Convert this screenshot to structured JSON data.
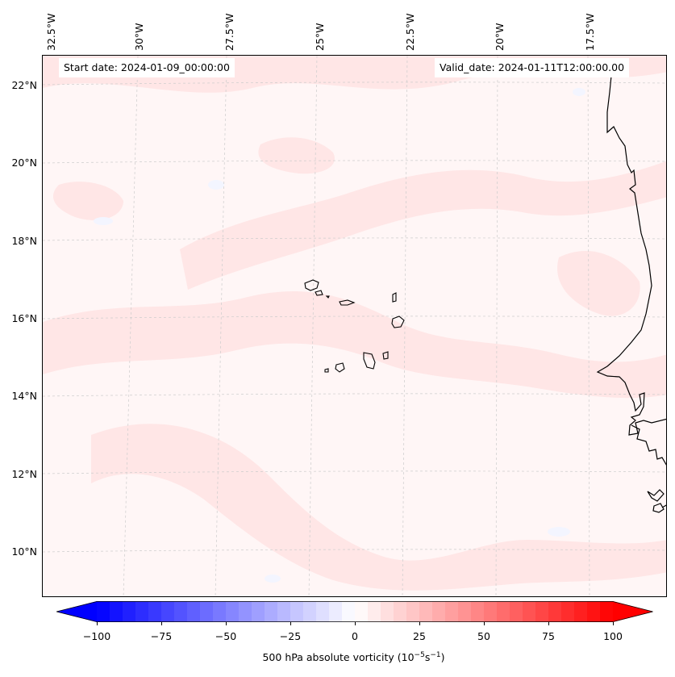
{
  "header": {
    "start_date": "Start date: 2024-01-09_00:00:00",
    "valid_date": "Valid_date: 2024-01-11T12:00:00.00"
  },
  "longitude_labels": [
    "32.5°W",
    "30°W",
    "27.5°W",
    "25°W",
    "22.5°W",
    "20°W",
    "17.5°W"
  ],
  "latitude_labels": [
    "22°N",
    "20°N",
    "18°N",
    "16°N",
    "14°N",
    "12°N",
    "10°N"
  ],
  "map_extent": {
    "lon_min": -32.5,
    "lon_max": -15.4,
    "lat_min": 8.9,
    "lat_max": 22.7
  },
  "colorbar": {
    "label_main": "500 hPa absolute vorticity (10",
    "label_exp1": "−5",
    "label_mid": "s",
    "label_exp2": "−1",
    "label_end": ")",
    "ticks": [
      "−100",
      "−75",
      "−50",
      "−25",
      "0",
      "25",
      "50",
      "75",
      "100"
    ],
    "min": -100,
    "max": 100,
    "colors": {
      "negative": "#0000ff",
      "zero": "#ffffff",
      "positive": "#ff0000"
    },
    "extend": "both"
  },
  "colors": {
    "background_field": "#fff6f6",
    "band_field": "#ffe6e6",
    "coastline": "#000000",
    "grid": "#cccccc"
  }
}
